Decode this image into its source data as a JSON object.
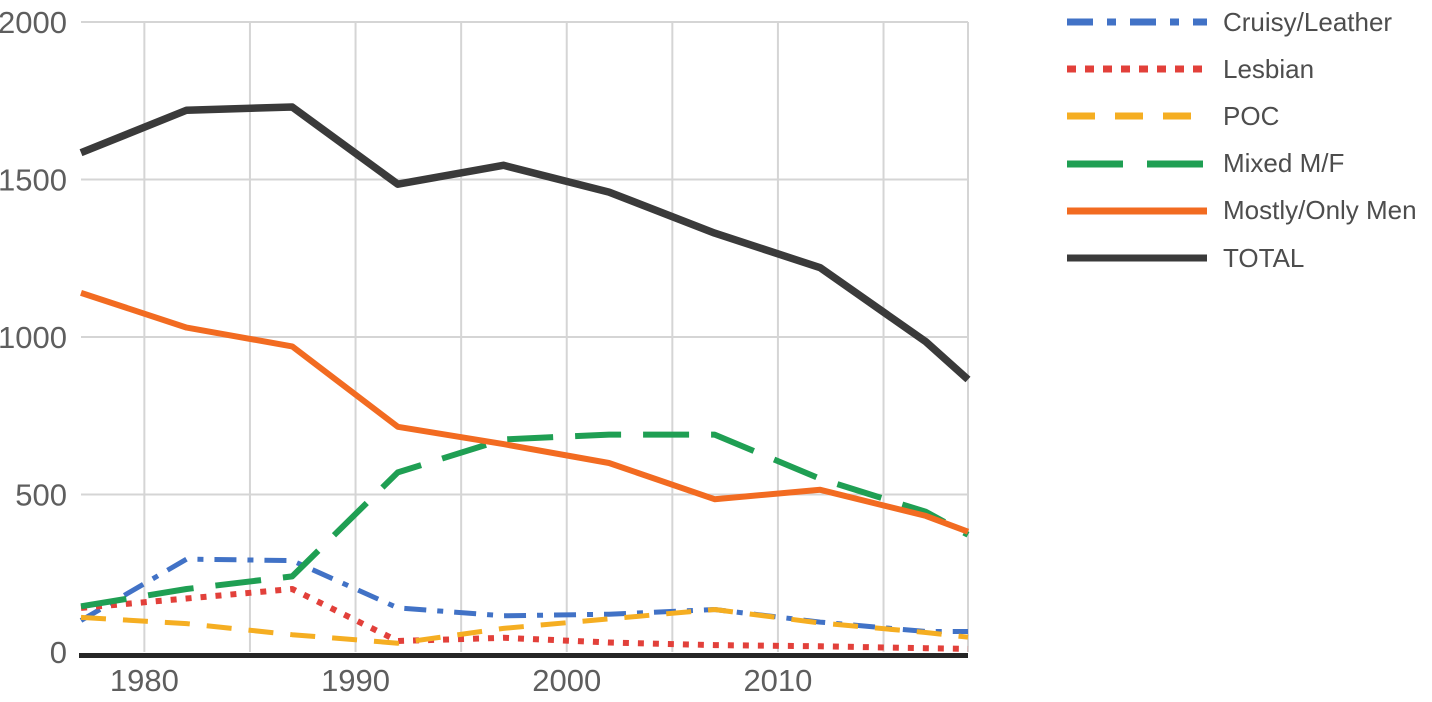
{
  "chart_data": {
    "type": "line",
    "title": "",
    "xlabel": "",
    "ylabel": "",
    "x": [
      1977,
      1982,
      1987,
      1992,
      1997,
      2002,
      2007,
      2012,
      2017,
      2019
    ],
    "series": [
      {
        "name": "Cruisy/Leather",
        "color": "#4172C6",
        "dash": "dash-dot",
        "values": [
          100,
          295,
          290,
          140,
          115,
          120,
          135,
          95,
          65,
          65
        ]
      },
      {
        "name": "Lesbian",
        "color": "#E2403A",
        "dash": "dotted",
        "values": [
          140,
          170,
          200,
          35,
          45,
          30,
          22,
          18,
          12,
          10
        ]
      },
      {
        "name": "POC",
        "color": "#F5AE22",
        "dash": "dashed",
        "values": [
          110,
          90,
          55,
          28,
          75,
          105,
          135,
          92,
          62,
          47
        ]
      },
      {
        "name": "Mixed M/F",
        "color": "#1F9F53",
        "dash": "long-dash",
        "values": [
          145,
          200,
          240,
          570,
          675,
          690,
          690,
          550,
          445,
          372
        ]
      },
      {
        "name": "Mostly/Only Men",
        "color": "#F26B21",
        "dash": "solid",
        "values": [
          1140,
          1030,
          970,
          715,
          660,
          600,
          485,
          515,
          432,
          382
        ]
      },
      {
        "name": "TOTAL",
        "color": "#3A3A3A",
        "dash": "solid",
        "values": [
          1585,
          1720,
          1730,
          1485,
          1545,
          1460,
          1330,
          1220,
          985,
          865
        ]
      }
    ],
    "xlim": [
      1977,
      2019
    ],
    "ylim": [
      0,
      2000
    ],
    "x_tick_labels": [
      "1980",
      "1990",
      "2000",
      "2010"
    ],
    "x_tick_values": [
      1980,
      1990,
      2000,
      2010
    ],
    "y_tick_labels": [
      "0",
      "500",
      "1000",
      "1500",
      "2000"
    ],
    "y_tick_values": [
      0,
      500,
      1000,
      1500,
      2000
    ],
    "x_gridline_values": [
      1980,
      1985,
      1990,
      1995,
      2000,
      2005,
      2010,
      2015,
      2019
    ],
    "y_gridline_values": [
      500,
      1000,
      1500,
      2000
    ],
    "grid": true,
    "legend_position": "right"
  },
  "legend": {
    "items": [
      "Cruisy/Leather",
      "Lesbian",
      "POC",
      "Mixed M/F",
      "Mostly/Only Men",
      "TOTAL"
    ]
  },
  "colors": {
    "background": "#FFFFFF",
    "gridline": "#D5D5D5",
    "axis_line": "#262626",
    "axis_text": "#5E5E5E",
    "legend_text": "#4D4D4D"
  }
}
